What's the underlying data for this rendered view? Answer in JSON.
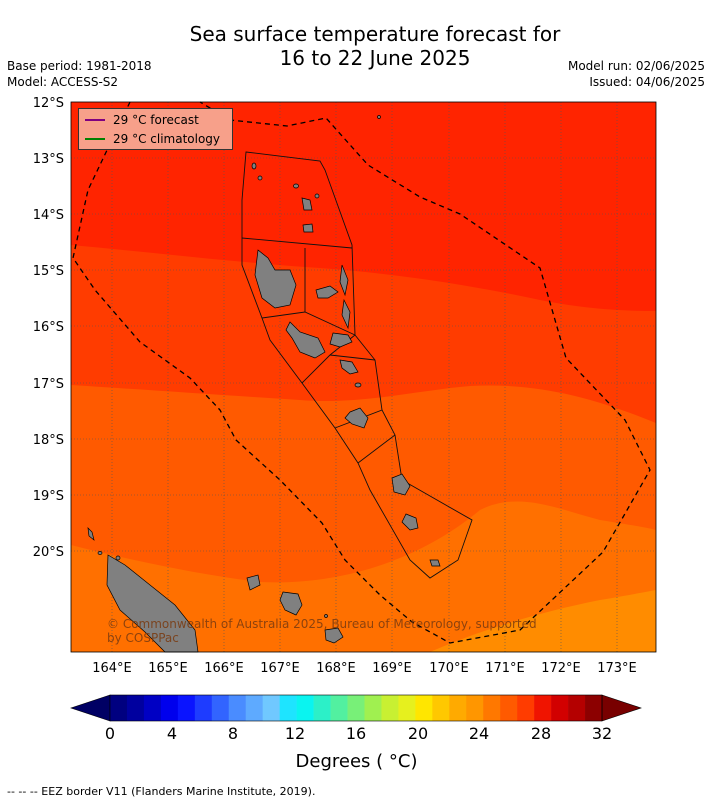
{
  "title_line1": "Sea surface temperature forecast for",
  "title_line2": "16 to 22 June 2025",
  "base_period": "Base period: 1981-2018",
  "model": "Model: ACCESS-S2",
  "model_run": "Model run: 02/06/2025",
  "issued": "Issued: 04/06/2025",
  "legend": {
    "forecast": "29 °C  forecast",
    "climatology": "29 °C  climatology",
    "forecast_color": "#800080",
    "climatology_color": "#008000"
  },
  "lat_labels": [
    "12°S",
    "13°S",
    "14°S",
    "15°S",
    "16°S",
    "17°S",
    "18°S",
    "19°S",
    "20°S"
  ],
  "lon_labels": [
    "164°E",
    "165°E",
    "166°E",
    "167°E",
    "168°E",
    "169°E",
    "170°E",
    "171°E",
    "172°E",
    "173°E"
  ],
  "copyright": "© Commonwealth of Australia 2025, Bureau of Meteorology, supported by COSPPac",
  "colorbar": {
    "ticks": [
      "0",
      "4",
      "8",
      "12",
      "16",
      "20",
      "24",
      "28",
      "32"
    ],
    "title": "Degrees ( °C)",
    "colors": [
      "#000080",
      "#00009f",
      "#0000c4",
      "#0000ed",
      "#0a14ff",
      "#1e3cff",
      "#3264ff",
      "#4a8cff",
      "#5eaaff",
      "#70c8ff",
      "#1ee4ff",
      "#0af4f0",
      "#2cf0c8",
      "#52f0a0",
      "#78f078",
      "#a0f050",
      "#c8f032",
      "#e6f01e",
      "#ffe600",
      "#ffc800",
      "#ffaa00",
      "#ff9600",
      "#ff7800",
      "#ff5a00",
      "#ff3c00",
      "#f01400",
      "#d20000",
      "#b40000",
      "#8c0000"
    ],
    "under_color": "#000064",
    "over_color": "#780000"
  },
  "footnote": "--  --  -- EEZ border V11 (Flanders Marine Institute, 2019)."
}
